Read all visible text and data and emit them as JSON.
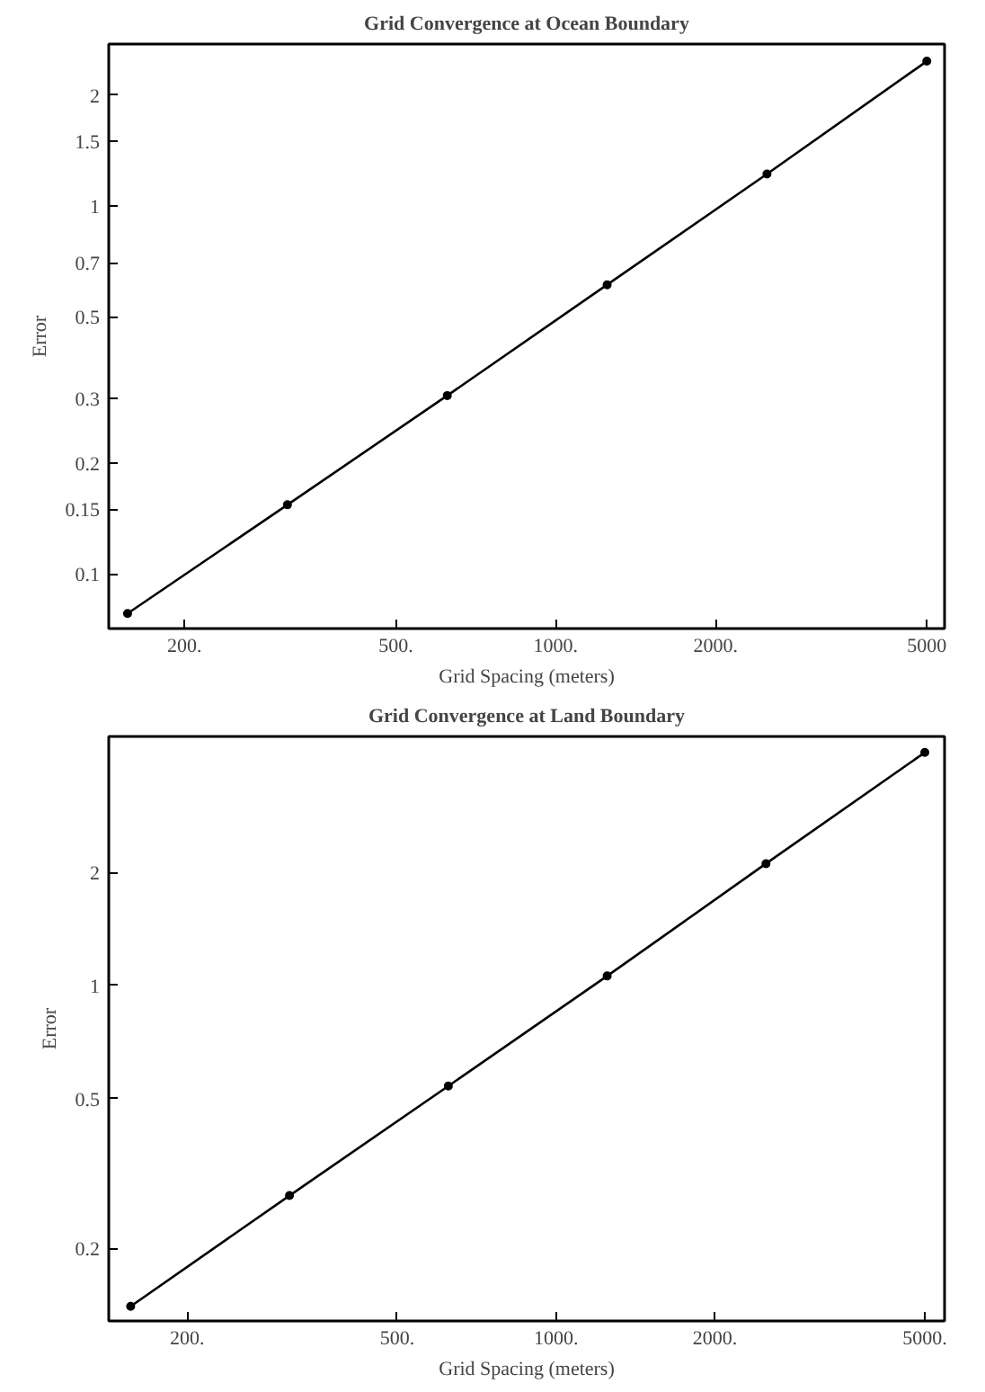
{
  "chart_data": [
    {
      "type": "line",
      "title": "Grid Convergence at Ocean Boundary",
      "xlabel": "Grid Spacing (meters)",
      "ylabel": "Error",
      "log": "xy",
      "marker": "circle",
      "grid": false,
      "x": [
        156.25,
        312.5,
        625,
        1250,
        2500,
        5000
      ],
      "series": [
        {
          "color": "#000000",
          "values": [
            0.078,
            0.154,
            0.305,
            0.61,
            1.22,
            2.47
          ]
        }
      ],
      "xlim": [
        144,
        5400
      ],
      "ylim": [
        0.071,
        2.75
      ],
      "xticks": [
        {
          "value": 200,
          "label": "200."
        },
        {
          "value": 500,
          "label": "500."
        },
        {
          "value": 1000,
          "label": "1000."
        },
        {
          "value": 2000,
          "label": "2000."
        },
        {
          "value": 5000,
          "label": "5000"
        }
      ],
      "yticks": [
        0.1,
        0.15,
        0.2,
        0.3,
        0.5,
        0.7,
        1,
        1.5,
        2
      ]
    },
    {
      "type": "line",
      "title": "Grid Convergence at Land Boundary",
      "xlabel": "Grid Spacing (meters)",
      "ylabel": "Error",
      "log": "xy",
      "marker": "circle",
      "grid": false,
      "x": [
        156.25,
        312.5,
        625,
        1250,
        2500,
        5000
      ],
      "series": [
        {
          "color": "#000000",
          "values": [
            0.14,
            0.276,
            0.54,
            1.06,
            2.11,
            4.17
          ]
        }
      ],
      "xlim": [
        142,
        5450
      ],
      "ylim": [
        0.128,
        4.6
      ],
      "xticks": [
        {
          "value": 200,
          "label": "200."
        },
        {
          "value": 500,
          "label": "500."
        },
        {
          "value": 1000,
          "label": "1000."
        },
        {
          "value": 2000,
          "label": "2000."
        },
        {
          "value": 5000,
          "label": "5000."
        }
      ],
      "yticks": [
        0.2,
        0.5,
        1,
        2
      ]
    }
  ]
}
